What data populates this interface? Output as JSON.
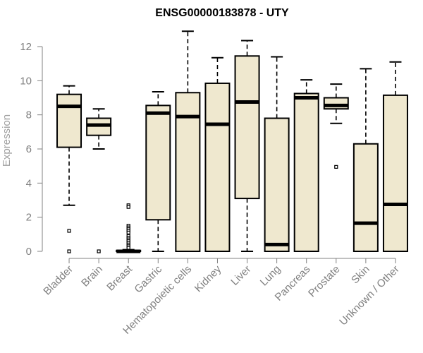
{
  "chart_data": {
    "type": "boxplot",
    "title": "ENSG00000183878 - UTY",
    "xlabel": "",
    "ylabel": "Expression",
    "ylim": [
      0,
      12.6
    ],
    "yticks": [
      0,
      2,
      4,
      6,
      8,
      10,
      12
    ],
    "box_fill": "#efe8cf",
    "box_stroke": "#000000",
    "axis_color": "#808080",
    "categories": [
      "Bladder",
      "Brain",
      "Breast",
      "Gastric",
      "Hematopoietic cells",
      "Kidney",
      "Liver",
      "Lung",
      "Pancreas",
      "Prostate",
      "Skin",
      "Unknown / Other"
    ],
    "boxes": [
      {
        "name": "Bladder",
        "whisker_low": 2.7,
        "q1": 6.1,
        "median": 8.5,
        "q3": 9.2,
        "whisker_high": 9.7,
        "outliers": [
          1.2,
          0.0
        ]
      },
      {
        "name": "Brain",
        "whisker_low": 6.0,
        "q1": 6.8,
        "median": 7.4,
        "q3": 7.8,
        "whisker_high": 8.35,
        "outliers": [
          0.0
        ]
      },
      {
        "name": "Breast",
        "whisker_low": 0.0,
        "q1": 0.0,
        "median": 0.0,
        "q3": 0.05,
        "whisker_high": 0.1,
        "outliers": [
          2.7,
          2.6,
          1.5,
          1.4,
          1.3,
          1.2,
          1.1,
          0.9,
          0.8,
          0.7,
          0.6,
          0.5,
          0.4,
          0.3,
          0.2
        ]
      },
      {
        "name": "Gastric",
        "whisker_low": 0.0,
        "q1": 1.85,
        "median": 8.1,
        "q3": 8.55,
        "whisker_high": 9.35,
        "outliers": []
      },
      {
        "name": "Hematopoietic cells",
        "whisker_low": 0.0,
        "q1": 0.0,
        "median": 7.9,
        "q3": 9.3,
        "whisker_high": 12.9,
        "outliers": []
      },
      {
        "name": "Kidney",
        "whisker_low": 0.0,
        "q1": 0.0,
        "median": 7.45,
        "q3": 9.85,
        "whisker_high": 11.35,
        "outliers": []
      },
      {
        "name": "Liver",
        "whisker_low": 0.0,
        "q1": 3.1,
        "median": 8.75,
        "q3": 11.45,
        "whisker_high": 12.35,
        "outliers": []
      },
      {
        "name": "Lung",
        "whisker_low": 0.0,
        "q1": 0.0,
        "median": 0.4,
        "q3": 7.8,
        "whisker_high": 11.4,
        "outliers": []
      },
      {
        "name": "Pancreas",
        "whisker_low": 0.0,
        "q1": 0.0,
        "median": 9.0,
        "q3": 9.25,
        "whisker_high": 10.05,
        "outliers": []
      },
      {
        "name": "Prostate",
        "whisker_low": 7.5,
        "q1": 8.35,
        "median": 8.55,
        "q3": 9.0,
        "whisker_high": 9.8,
        "outliers": [
          4.95
        ]
      },
      {
        "name": "Skin",
        "whisker_low": 0.0,
        "q1": 0.0,
        "median": 1.65,
        "q3": 6.3,
        "whisker_high": 10.7,
        "outliers": []
      },
      {
        "name": "Unknown / Other",
        "whisker_low": 0.0,
        "q1": 0.0,
        "median": 2.75,
        "q3": 9.15,
        "whisker_high": 11.1,
        "outliers": []
      }
    ]
  }
}
